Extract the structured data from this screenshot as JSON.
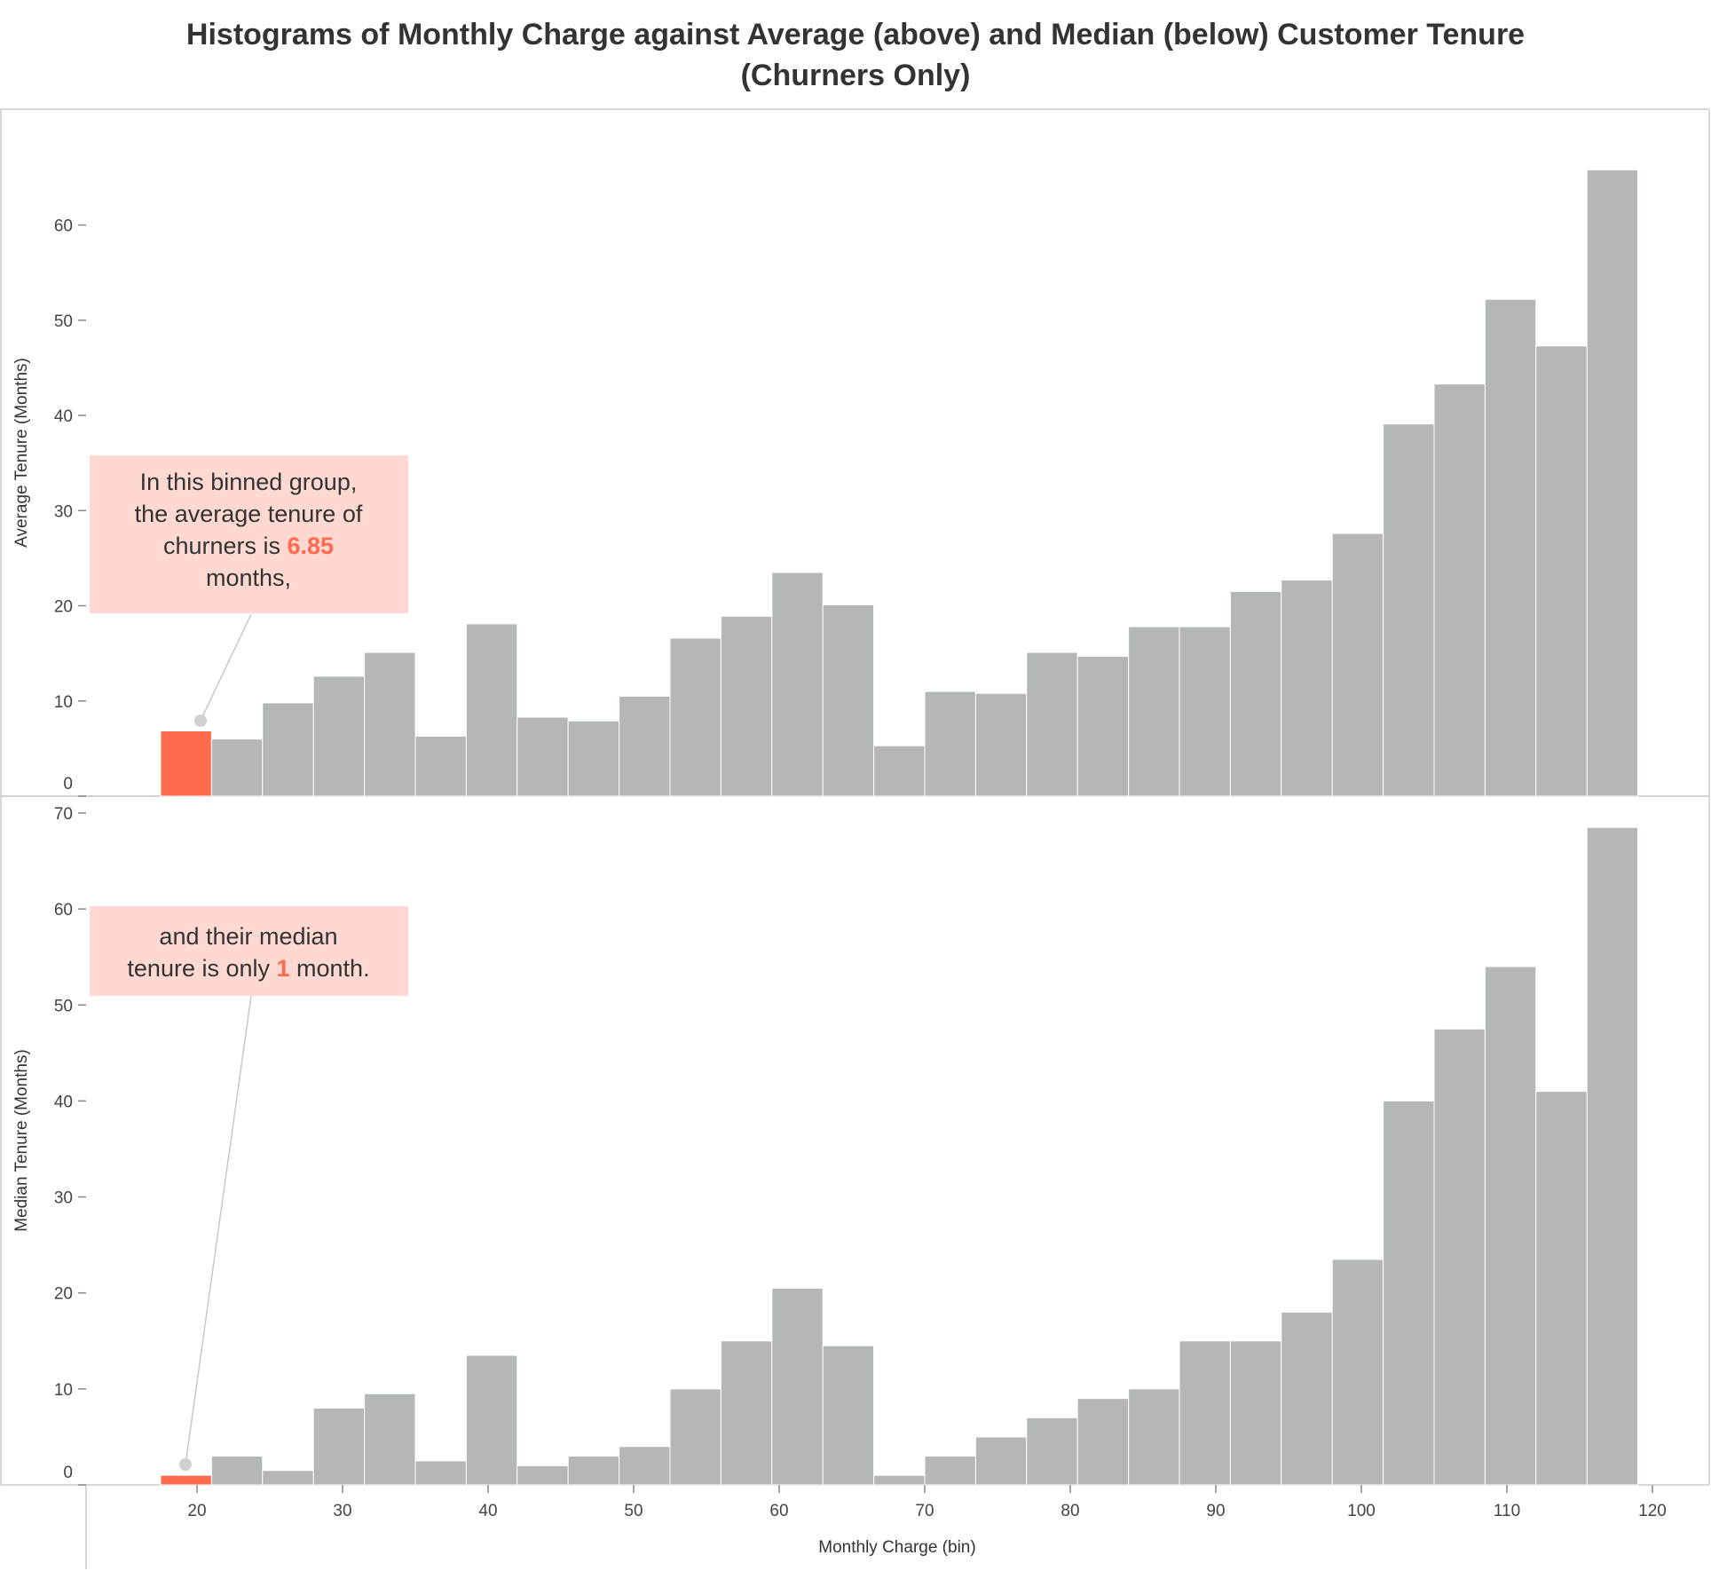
{
  "title_line1": "Histograms of Monthly Charge against Average (above) and Median (below) Customer Tenure",
  "title_line2": "(Churners Only)",
  "colors": {
    "bar": "#b4b7b8",
    "highlight": "#ff6a4d",
    "annotation_bg": "#ffd8d2",
    "frame": "#cccccc",
    "connector": "#c8c8c8"
  },
  "chart_data": [
    {
      "type": "bar",
      "panel": "top",
      "ylabel": "Average Tenure (Months)",
      "xlabel": "",
      "ylim": [
        0,
        69
      ],
      "yticks": [
        0,
        10,
        20,
        30,
        40,
        50,
        60
      ],
      "bin_width": 3.5,
      "bin_start": 17.5,
      "values": [
        6.85,
        6,
        9.8,
        12.6,
        15.1,
        6.3,
        18.1,
        8.3,
        7.9,
        10.5,
        16.6,
        18.9,
        23.5,
        20.1,
        5.3,
        11,
        10.8,
        15.1,
        14.7,
        17.8,
        17.8,
        21.5,
        22.7,
        27.6,
        39.1,
        43.3,
        52.2,
        47.3,
        65.8
      ],
      "highlight_index": 0,
      "annotation": {
        "pre": "In this binned group,",
        "line2": "the average tenure of",
        "line3_pre": "churners is ",
        "value": "6.85",
        "line4": "months,"
      }
    },
    {
      "type": "bar",
      "panel": "bottom",
      "ylabel": "Median Tenure (Months)",
      "xlabel": "Monthly Charge (bin)",
      "ylim": [
        0,
        70
      ],
      "yticks": [
        0,
        10,
        20,
        30,
        40,
        50,
        60,
        70
      ],
      "xticks": [
        20,
        30,
        40,
        50,
        60,
        70,
        80,
        90,
        100,
        110,
        120
      ],
      "bin_width": 3.5,
      "bin_start": 17.5,
      "values": [
        1,
        3,
        1.5,
        8,
        9.5,
        2.5,
        13.5,
        2,
        3,
        4,
        10,
        15,
        20.5,
        14.5,
        1,
        3,
        5,
        7,
        9,
        10,
        15,
        15,
        18,
        23.5,
        40,
        47.5,
        54,
        41,
        68.5
      ],
      "highlight_index": 0,
      "annotation": {
        "line1": "and their median",
        "line2_pre": "tenure is only ",
        "value": "1",
        "line2_post": " month."
      }
    }
  ]
}
